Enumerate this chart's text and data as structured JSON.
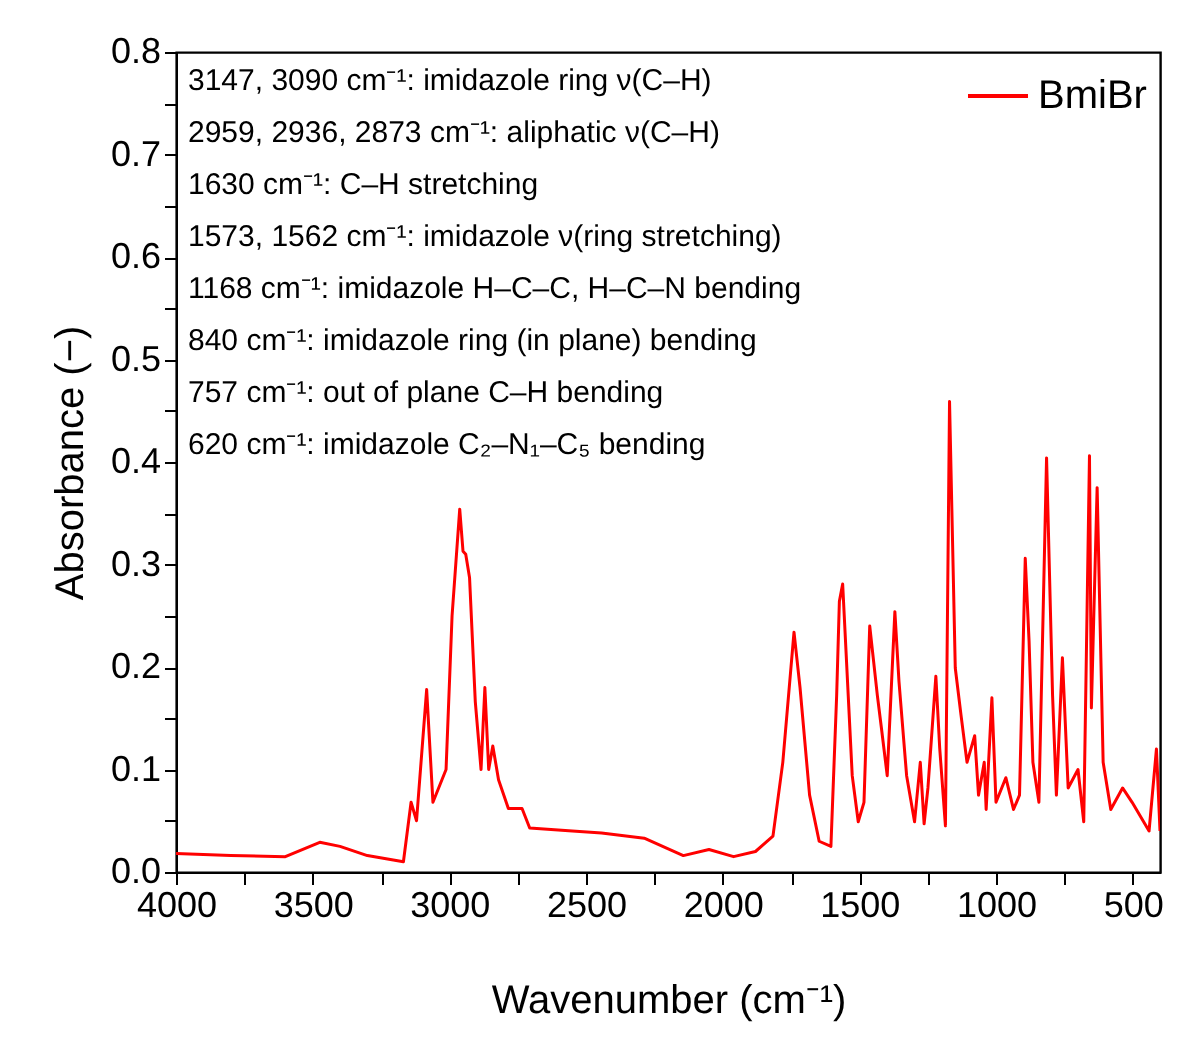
{
  "chart_data": {
    "type": "line",
    "xlabel": "Wavenumber (cm⁻¹)",
    "ylabel": "Absorbance (−)",
    "annotations": [
      "3147, 3090 cm⁻¹: imidazole ring ν(C–H)",
      "2959, 2936, 2873 cm⁻¹: aliphatic ν(C–H)",
      "1630 cm⁻¹: C–H stretching",
      "1573, 1562 cm⁻¹: imidazole ν(ring stretching)",
      "1168 cm⁻¹: imidazole H–C–C, H–C–N bending",
      "840 cm⁻¹: imidazole ring (in plane) bending",
      "757 cm⁻¹: out of plane C–H bending",
      "620 cm⁻¹: imidazole C₂–N₁–C₅ bending"
    ],
    "xlim": [
      4000,
      400
    ],
    "xticks": [
      4000,
      {
        "value": 3750,
        "label": null
      },
      3500,
      {
        "value": 3250,
        "label": null
      },
      3000,
      {
        "value": 2750,
        "label": null
      },
      2500,
      {
        "value": 2250,
        "label": null
      },
      2000,
      {
        "value": 1750,
        "label": null
      },
      1500,
      {
        "value": 1250,
        "label": null
      },
      1000,
      {
        "value": 750,
        "label": null
      },
      500
    ],
    "ylim": [
      0,
      0.8
    ],
    "yticks": [
      {
        "value": 0,
        "label": "0.0"
      },
      {
        "value": 0.05,
        "label": null
      },
      0.1,
      {
        "value": 0.15,
        "label": null
      },
      0.2,
      {
        "value": 0.25,
        "label": null
      },
      0.3,
      {
        "value": 0.35,
        "label": null
      },
      0.4,
      {
        "value": 0.45,
        "label": null
      },
      0.5,
      {
        "value": 0.55,
        "label": null
      },
      0.6,
      {
        "value": 0.65,
        "label": null
      },
      0.7,
      {
        "value": 0.75,
        "label": null
      },
      0.8
    ],
    "grid": false,
    "legend": "top right",
    "x": [
      4000,
      3800,
      3600,
      3474,
      3400,
      3300,
      3168,
      3140,
      3120,
      3083,
      3060,
      3012,
      2990,
      2962,
      2950,
      2940,
      2926,
      2905,
      2884,
      2870,
      2856,
      2841,
      2820,
      2784,
      2734,
      2706,
      2550,
      2443,
      2287,
      2144,
      2050,
      1960,
      1880,
      1816,
      1780,
      1739,
      1717,
      1682,
      1647,
      1604,
      1583,
      1573,
      1561,
      1526,
      1504,
      1483,
      1462,
      1434,
      1419,
      1398,
      1370,
      1355,
      1327,
      1298,
      1277,
      1263,
      1249,
      1220,
      1206,
      1185,
      1170,
      1149,
      1128,
      1106,
      1078,
      1064,
      1043,
      1036,
      1015,
      1000,
      964,
      936,
      914,
      893,
      879,
      865,
      843,
      815,
      793,
      779,
      757,
      736,
      700,
      679,
      658,
      651,
      630,
      608,
      580,
      537,
      502,
      440,
      413,
      400
    ],
    "series": [
      {
        "name": "BmiBr",
        "color": "#ff0000",
        "values": [
          0.018,
          0.016,
          0.015,
          0.029,
          0.025,
          0.016,
          0.01,
          0.068,
          0.05,
          0.178,
          0.068,
          0.1,
          0.25,
          0.354,
          0.313,
          0.31,
          0.287,
          0.166,
          0.1,
          0.18,
          0.1,
          0.123,
          0.09,
          0.062,
          0.062,
          0.043,
          0.04,
          0.038,
          0.033,
          0.016,
          0.022,
          0.015,
          0.02,
          0.035,
          0.107,
          0.234,
          0.18,
          0.075,
          0.03,
          0.025,
          0.172,
          0.264,
          0.281,
          0.094,
          0.049,
          0.068,
          0.24,
          0.172,
          0.14,
          0.094,
          0.254,
          0.186,
          0.094,
          0.049,
          0.107,
          0.047,
          0.082,
          0.191,
          0.121,
          0.045,
          0.459,
          0.199,
          0.153,
          0.107,
          0.133,
          0.075,
          0.107,
          0.061,
          0.17,
          0.068,
          0.092,
          0.061,
          0.075,
          0.306,
          0.225,
          0.107,
          0.068,
          0.404,
          0.172,
          0.075,
          0.209,
          0.082,
          0.1,
          0.049,
          0.406,
          0.16,
          0.375,
          0.107,
          0.061,
          0.082,
          0.068,
          0.04,
          0.12,
          0.04
        ]
      }
    ]
  }
}
